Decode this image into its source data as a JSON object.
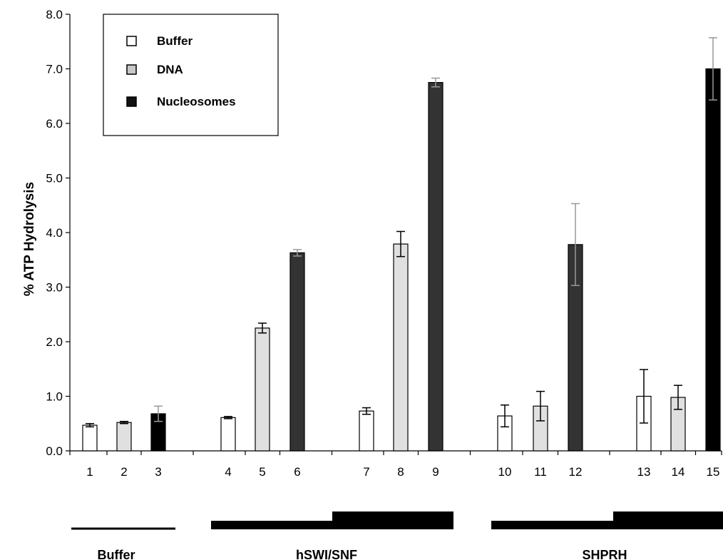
{
  "chart_data": {
    "type": "bar",
    "title": "",
    "xlabel": "",
    "ylabel": "% ATP Hydrolysis",
    "ylim": [
      0,
      8
    ],
    "yticks": [
      "0.0",
      "1.0",
      "2.0",
      "3.0",
      "4.0",
      "5.0",
      "6.0",
      "7.0",
      "8.0"
    ],
    "grid": false,
    "legend": {
      "position": "top-left",
      "entries": [
        {
          "key": "buffer",
          "label": "Buffer",
          "color": "#ffffff"
        },
        {
          "key": "dna",
          "label": "DNA",
          "color": "#c8c8c8"
        },
        {
          "key": "nucleosomes",
          "label": "Nucleosomes",
          "color": "#111111"
        }
      ]
    },
    "bars": [
      {
        "label": "1",
        "value": 0.47,
        "error": 0.03,
        "fill": "#ffffff",
        "errcolor": "#000000"
      },
      {
        "label": "2",
        "value": 0.52,
        "error": 0.02,
        "fill": "#e0e0e0",
        "errcolor": "#000000"
      },
      {
        "label": "3",
        "value": 0.68,
        "error": 0.14,
        "fill": "#000000",
        "errcolor": "#999999"
      },
      {
        "label": "4",
        "value": 0.61,
        "error": 0.02,
        "fill": "#ffffff",
        "errcolor": "#000000"
      },
      {
        "label": "5",
        "value": 2.25,
        "error": 0.09,
        "fill": "#e0e0e0",
        "errcolor": "#000000"
      },
      {
        "label": "6",
        "value": 3.63,
        "error": 0.06,
        "fill": "#333333",
        "errcolor": "#999999"
      },
      {
        "label": "7",
        "value": 0.73,
        "error": 0.06,
        "fill": "#ffffff",
        "errcolor": "#000000"
      },
      {
        "label": "8",
        "value": 3.79,
        "error": 0.23,
        "fill": "#e0e0e0",
        "errcolor": "#000000"
      },
      {
        "label": "9",
        "value": 6.75,
        "error": 0.08,
        "fill": "#333333",
        "errcolor": "#999999"
      },
      {
        "label": "10",
        "value": 0.64,
        "error": 0.2,
        "fill": "#ffffff",
        "errcolor": "#000000"
      },
      {
        "label": "11",
        "value": 0.82,
        "error": 0.27,
        "fill": "#e0e0e0",
        "errcolor": "#000000"
      },
      {
        "label": "12",
        "value": 3.78,
        "error": 0.75,
        "fill": "#333333",
        "errcolor": "#999999"
      },
      {
        "label": "13",
        "value": 1.0,
        "error": 0.49,
        "fill": "#ffffff",
        "errcolor": "#000000"
      },
      {
        "label": "14",
        "value": 0.98,
        "error": 0.22,
        "fill": "#e0e0e0",
        "errcolor": "#000000"
      },
      {
        "label": "15",
        "value": 7.0,
        "error": 0.57,
        "fill": "#000000",
        "errcolor": "#999999"
      }
    ],
    "groups": [
      {
        "label": "Buffer",
        "bars": [
          1,
          3
        ],
        "indicator": "line"
      },
      {
        "label": "hSWI/SNF",
        "bars": [
          4,
          9
        ],
        "indicator": "wedge"
      },
      {
        "label": "SHPRH",
        "bars": [
          10,
          15
        ],
        "indicator": "wedge"
      }
    ]
  }
}
